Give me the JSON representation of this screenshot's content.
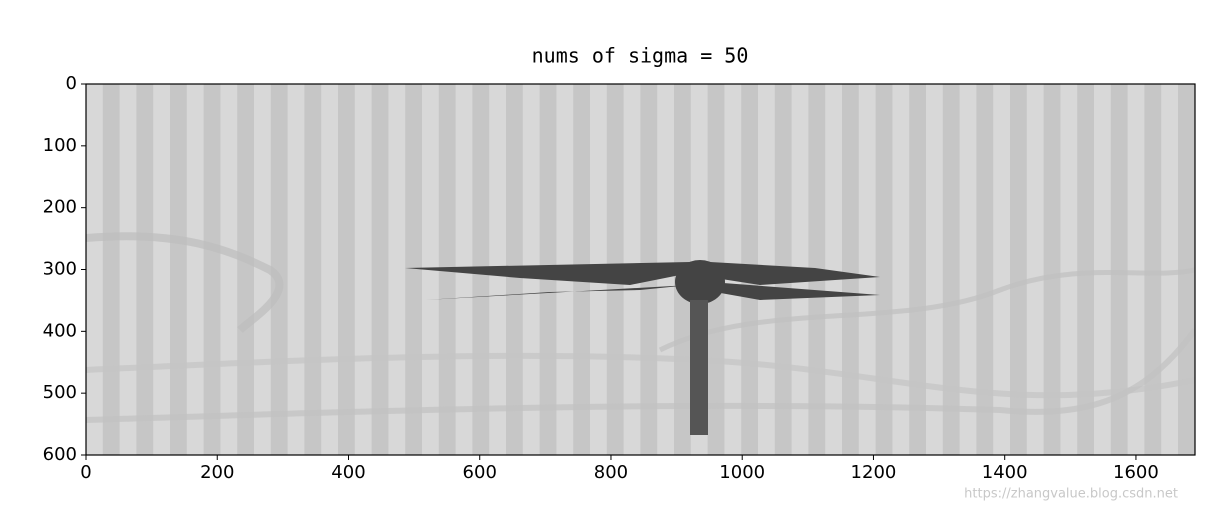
{
  "chart_data": {
    "type": "image",
    "title": "nums of sigma = 50",
    "xlim": [
      0,
      1690
    ],
    "ylim": [
      600,
      0
    ],
    "xticks": [
      0,
      200,
      400,
      600,
      800,
      1000,
      1200,
      1400,
      1600
    ],
    "yticks": [
      0,
      100,
      200,
      300,
      400,
      500,
      600
    ]
  },
  "watermark": "https://zhangvalue.blog.csdn.net"
}
